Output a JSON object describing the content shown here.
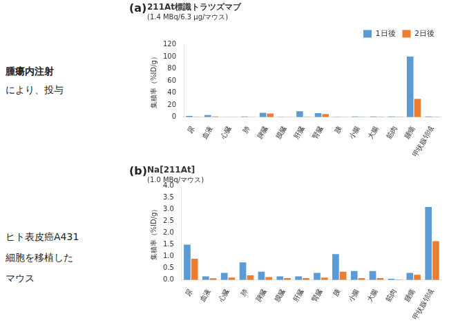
{
  "annotations": [
    "腫瘍内注射",
    "により、投与",
    "ヒト表皮癌A431",
    "細胞を移植した",
    "マウス"
  ],
  "chart_data": [
    {
      "type": "bar",
      "annotations": [
        "(a)"
      ],
      "title": "211At標識トラツズマブ",
      "subtitle": "(1.4 MBq/6.3 μg/マウス)",
      "ylabel": "集積率（%ID/g）",
      "categories": [
        "尿",
        "血液",
        "心臓",
        "肺",
        "脾臓",
        "膜臓",
        "肝臓",
        "腎臓",
        "胰",
        "小腸",
        "大腸",
        "筋肉",
        "腫瘍",
        "甲状腺領域"
      ],
      "series": [
        {
          "name": "1日後",
          "color": "#5B9BD5",
          "values": [
            2.0,
            3.5,
            0.3,
            1.0,
            7.0,
            0.5,
            9.5,
            6.5,
            0.5,
            1.0,
            1.0,
            1.0,
            100.0,
            1.0
          ]
        },
        {
          "name": "2日後",
          "color": "#ED7D31",
          "values": [
            0.5,
            1.0,
            0.2,
            0.2,
            6.0,
            0.3,
            0.6,
            5.0,
            0.2,
            0.5,
            0.5,
            0.5,
            30.0,
            0.5
          ]
        }
      ],
      "ylim": [
        0,
        120
      ],
      "yticks": [
        0,
        20,
        40,
        60,
        80,
        100,
        120
      ],
      "legend": "upper right",
      "grid": false
    },
    {
      "type": "bar",
      "annotations": [
        "(b)"
      ],
      "title": "Na[211At]",
      "subtitle": "(1.0 MBq/マウス)",
      "ylabel": "集積率（%ID/g）",
      "categories": [
        "尿",
        "血液",
        "心臓",
        "肺",
        "脾臓",
        "膜臓",
        "肝臓",
        "腎臓",
        "胰",
        "小腸",
        "大腸",
        "筋肉",
        "腫瘍",
        "甲状腺領域"
      ],
      "series": [
        {
          "color": "#5B9BD5",
          "values": [
            1.5,
            0.15,
            0.3,
            0.75,
            0.35,
            0.15,
            0.15,
            0.3,
            1.1,
            0.38,
            0.38,
            0.05,
            0.3,
            3.1
          ]
        },
        {
          "color": "#ED7D31",
          "values": [
            0.9,
            0.07,
            0.1,
            0.2,
            0.12,
            0.08,
            0.08,
            0.1,
            0.35,
            0.08,
            0.08,
            0.02,
            0.22,
            1.65
          ]
        }
      ],
      "ylim": [
        0,
        4
      ],
      "yticks": [
        {
          "value": 0,
          "label": "0.0"
        },
        0.5,
        {
          "value": 1.0,
          "label": "1.0"
        },
        1.5,
        {
          "value": 2.0,
          "label": "2.0"
        },
        2.5,
        {
          "value": 3.0,
          "label": "3.0"
        },
        3.5,
        {
          "value": 4.0,
          "label": "4.0"
        }
      ],
      "grid": false
    }
  ]
}
